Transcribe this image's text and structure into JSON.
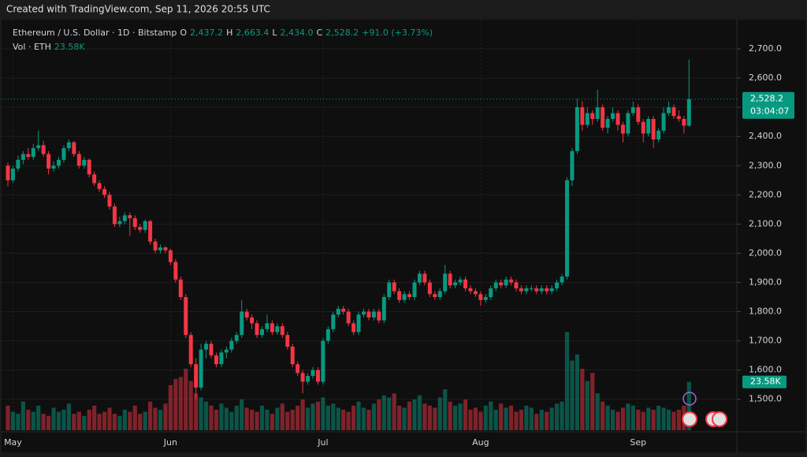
{
  "watermark": "Created with TradingView.com, Sep 11, 2026 20:55 UTC",
  "chart_data": {
    "type": "candlestick",
    "symbol": "Ethereum / U.S. Dollar · 1D · Bitstamp",
    "ohlc_fields": [
      {
        "key": "O",
        "label": "2,437.2"
      },
      {
        "key": "H",
        "label": "2,663.4"
      },
      {
        "key": "L",
        "label": "2,434.0"
      },
      {
        "key": "C",
        "label": "2,528.2"
      }
    ],
    "change_label": "+91.0 (+3.73%)",
    "volume_title": "Vol · ETH",
    "volume_label": "23.58K",
    "price_label": "2,528.2",
    "countdown": "03:04:07",
    "up_color": "#089981",
    "down_color": "#f23645",
    "ylim": [
      1388.5,
      2800
    ],
    "yticks": [
      {
        "value": 1500,
        "label": "1,500.0"
      },
      {
        "value": 1600,
        "label": "1,600.0"
      },
      {
        "value": 1700,
        "label": "1,700.0"
      },
      {
        "value": 1800,
        "label": "1,800.0"
      },
      {
        "value": 1900,
        "label": "1,900.0"
      },
      {
        "value": 2000,
        "label": "2,000.0"
      },
      {
        "value": 2100,
        "label": "2,100.0"
      },
      {
        "value": 2200,
        "label": "2,200.0"
      },
      {
        "value": 2300,
        "label": "2,300.0"
      },
      {
        "value": 2400,
        "label": "2,400.0"
      },
      {
        "value": 2500,
        "label": "2,500.0"
      },
      {
        "value": 2600,
        "label": "2,600.0"
      },
      {
        "value": 2700,
        "label": "2,700.0"
      }
    ],
    "xticks": [
      {
        "value": 1,
        "label": "May"
      },
      {
        "value": 32,
        "label": "Jun"
      },
      {
        "value": 62,
        "label": "Jul"
      },
      {
        "value": 93,
        "label": "Aug"
      },
      {
        "value": 124,
        "label": "Sep"
      }
    ],
    "candles": [
      [
        2300,
        2310,
        2230,
        2250
      ],
      [
        2250,
        2300,
        2240,
        2290
      ],
      [
        2290,
        2335,
        2280,
        2320
      ],
      [
        2320,
        2350,
        2305,
        2340
      ],
      [
        2340,
        2360,
        2320,
        2330
      ],
      [
        2330,
        2375,
        2320,
        2360
      ],
      [
        2360,
        2420,
        2350,
        2370
      ],
      [
        2370,
        2385,
        2330,
        2340
      ],
      [
        2340,
        2350,
        2270,
        2290
      ],
      [
        2290,
        2315,
        2280,
        2300
      ],
      [
        2300,
        2330,
        2290,
        2320
      ],
      [
        2320,
        2370,
        2310,
        2360
      ],
      [
        2360,
        2390,
        2350,
        2380
      ],
      [
        2380,
        2385,
        2330,
        2340
      ],
      [
        2340,
        2350,
        2290,
        2300
      ],
      [
        2300,
        2330,
        2290,
        2320
      ],
      [
        2320,
        2325,
        2260,
        2270
      ],
      [
        2270,
        2280,
        2230,
        2240
      ],
      [
        2240,
        2250,
        2210,
        2220
      ],
      [
        2220,
        2230,
        2190,
        2200
      ],
      [
        2200,
        2210,
        2150,
        2160
      ],
      [
        2160,
        2170,
        2090,
        2100
      ],
      [
        2100,
        2125,
        2090,
        2110
      ],
      [
        2110,
        2140,
        2100,
        2130
      ],
      [
        2130,
        2140,
        2060,
        2120
      ],
      [
        2120,
        2130,
        2080,
        2090
      ],
      [
        2090,
        2100,
        2070,
        2080
      ],
      [
        2080,
        2115,
        2070,
        2110
      ],
      [
        2110,
        2115,
        2030,
        2040
      ],
      [
        2040,
        2050,
        2000,
        2010
      ],
      [
        2010,
        2030,
        2000,
        2020
      ],
      [
        2020,
        2025,
        2000,
        2010
      ],
      [
        2010,
        2015,
        1960,
        1970
      ],
      [
        1970,
        1980,
        1900,
        1910
      ],
      [
        1910,
        1920,
        1840,
        1850
      ],
      [
        1850,
        1860,
        1710,
        1720
      ],
      [
        1720,
        1730,
        1610,
        1620
      ],
      [
        1620,
        1640,
        1500,
        1540
      ],
      [
        1540,
        1690,
        1530,
        1670
      ],
      [
        1670,
        1700,
        1640,
        1690
      ],
      [
        1690,
        1700,
        1640,
        1650
      ],
      [
        1650,
        1660,
        1610,
        1620
      ],
      [
        1620,
        1670,
        1610,
        1660
      ],
      [
        1660,
        1680,
        1640,
        1670
      ],
      [
        1670,
        1710,
        1660,
        1700
      ],
      [
        1700,
        1730,
        1690,
        1720
      ],
      [
        1720,
        1840,
        1710,
        1800
      ],
      [
        1800,
        1810,
        1770,
        1780
      ],
      [
        1780,
        1790,
        1740,
        1760
      ],
      [
        1760,
        1770,
        1710,
        1720
      ],
      [
        1720,
        1750,
        1710,
        1740
      ],
      [
        1740,
        1790,
        1730,
        1760
      ],
      [
        1760,
        1770,
        1720,
        1730
      ],
      [
        1730,
        1760,
        1720,
        1750
      ],
      [
        1750,
        1760,
        1710,
        1720
      ],
      [
        1720,
        1730,
        1670,
        1680
      ],
      [
        1680,
        1690,
        1610,
        1620
      ],
      [
        1620,
        1630,
        1580,
        1590
      ],
      [
        1590,
        1600,
        1520,
        1560
      ],
      [
        1560,
        1590,
        1550,
        1580
      ],
      [
        1580,
        1610,
        1570,
        1600
      ],
      [
        1600,
        1610,
        1550,
        1560
      ],
      [
        1560,
        1710,
        1550,
        1700
      ],
      [
        1700,
        1750,
        1690,
        1740
      ],
      [
        1740,
        1800,
        1730,
        1790
      ],
      [
        1790,
        1820,
        1780,
        1810
      ],
      [
        1810,
        1820,
        1790,
        1800
      ],
      [
        1800,
        1810,
        1750,
        1760
      ],
      [
        1760,
        1770,
        1720,
        1730
      ],
      [
        1730,
        1800,
        1720,
        1790
      ],
      [
        1790,
        1810,
        1780,
        1800
      ],
      [
        1800,
        1810,
        1770,
        1780
      ],
      [
        1780,
        1810,
        1770,
        1800
      ],
      [
        1800,
        1810,
        1760,
        1770
      ],
      [
        1770,
        1860,
        1760,
        1850
      ],
      [
        1850,
        1910,
        1840,
        1900
      ],
      [
        1900,
        1910,
        1860,
        1870
      ],
      [
        1870,
        1880,
        1830,
        1840
      ],
      [
        1840,
        1870,
        1830,
        1860
      ],
      [
        1860,
        1870,
        1840,
        1850
      ],
      [
        1850,
        1910,
        1840,
        1900
      ],
      [
        1900,
        1940,
        1890,
        1930
      ],
      [
        1930,
        1940,
        1890,
        1900
      ],
      [
        1900,
        1910,
        1850,
        1860
      ],
      [
        1860,
        1870,
        1840,
        1850
      ],
      [
        1850,
        1880,
        1840,
        1870
      ],
      [
        1870,
        1960,
        1860,
        1930
      ],
      [
        1930,
        1940,
        1880,
        1890
      ],
      [
        1890,
        1910,
        1880,
        1900
      ],
      [
        1900,
        1920,
        1890,
        1910
      ],
      [
        1910,
        1920,
        1870,
        1880
      ],
      [
        1880,
        1890,
        1860,
        1870
      ],
      [
        1870,
        1880,
        1850,
        1860
      ],
      [
        1860,
        1870,
        1820,
        1840
      ],
      [
        1840,
        1860,
        1830,
        1850
      ],
      [
        1850,
        1890,
        1840,
        1880
      ],
      [
        1880,
        1910,
        1870,
        1900
      ],
      [
        1900,
        1910,
        1880,
        1890
      ],
      [
        1890,
        1920,
        1880,
        1910
      ],
      [
        1910,
        1920,
        1890,
        1900
      ],
      [
        1900,
        1910,
        1870,
        1880
      ],
      [
        1880,
        1890,
        1860,
        1870
      ],
      [
        1870,
        1890,
        1860,
        1880
      ],
      [
        1880,
        1890,
        1870,
        1880
      ],
      [
        1880,
        1890,
        1860,
        1870
      ],
      [
        1870,
        1890,
        1860,
        1880
      ],
      [
        1880,
        1890,
        1860,
        1870
      ],
      [
        1870,
        1890,
        1860,
        1880
      ],
      [
        1880,
        1910,
        1870,
        1900
      ],
      [
        1900,
        1930,
        1890,
        1920
      ],
      [
        1920,
        2260,
        1910,
        2250
      ],
      [
        2250,
        2360,
        2230,
        2350
      ],
      [
        2350,
        2530,
        2340,
        2500
      ],
      [
        2500,
        2520,
        2420,
        2440
      ],
      [
        2440,
        2500,
        2430,
        2480
      ],
      [
        2480,
        2490,
        2440,
        2460
      ],
      [
        2460,
        2560,
        2450,
        2500
      ],
      [
        2500,
        2510,
        2420,
        2430
      ],
      [
        2430,
        2470,
        2410,
        2460
      ],
      [
        2460,
        2500,
        2450,
        2480
      ],
      [
        2480,
        2490,
        2420,
        2440
      ],
      [
        2440,
        2450,
        2380,
        2410
      ],
      [
        2410,
        2490,
        2400,
        2480
      ],
      [
        2480,
        2520,
        2470,
        2500
      ],
      [
        2500,
        2510,
        2440,
        2450
      ],
      [
        2450,
        2460,
        2380,
        2410
      ],
      [
        2410,
        2470,
        2400,
        2460
      ],
      [
        2460,
        2470,
        2360,
        2390
      ],
      [
        2390,
        2430,
        2380,
        2420
      ],
      [
        2420,
        2500,
        2410,
        2480
      ],
      [
        2480,
        2520,
        2470,
        2500
      ],
      [
        2500,
        2510,
        2460,
        2470
      ],
      [
        2470,
        2490,
        2450,
        2460
      ],
      [
        2460,
        2470,
        2410,
        2437.2
      ],
      [
        2437.2,
        2663.4,
        2434.0,
        2528.2
      ]
    ],
    "volumes": [
      12,
      9,
      8,
      14,
      10,
      9,
      12,
      8,
      7,
      11,
      9,
      10,
      13,
      8,
      9,
      7,
      10,
      12,
      8,
      9,
      11,
      8,
      7,
      10,
      9,
      12,
      8,
      9,
      14,
      11,
      10,
      13,
      22,
      25,
      26,
      30,
      24,
      18,
      16,
      14,
      12,
      10,
      13,
      11,
      9,
      12,
      15,
      11,
      10,
      9,
      12,
      10,
      8,
      11,
      13,
      9,
      10,
      12,
      15,
      11,
      13,
      14,
      16,
      12,
      13,
      11,
      10,
      9,
      12,
      14,
      11,
      10,
      13,
      15,
      17,
      16,
      18,
      12,
      11,
      14,
      15,
      17,
      13,
      12,
      11,
      16,
      20,
      14,
      12,
      13,
      15,
      10,
      11,
      9,
      12,
      14,
      10,
      13,
      11,
      12,
      9,
      10,
      12,
      11,
      8,
      10,
      9,
      11,
      13,
      14,
      48,
      34,
      37,
      30,
      24,
      28,
      18,
      14,
      12,
      10,
      9,
      11,
      13,
      12,
      10,
      9,
      11,
      10,
      12,
      11,
      10,
      9,
      10,
      12,
      23.58
    ]
  }
}
